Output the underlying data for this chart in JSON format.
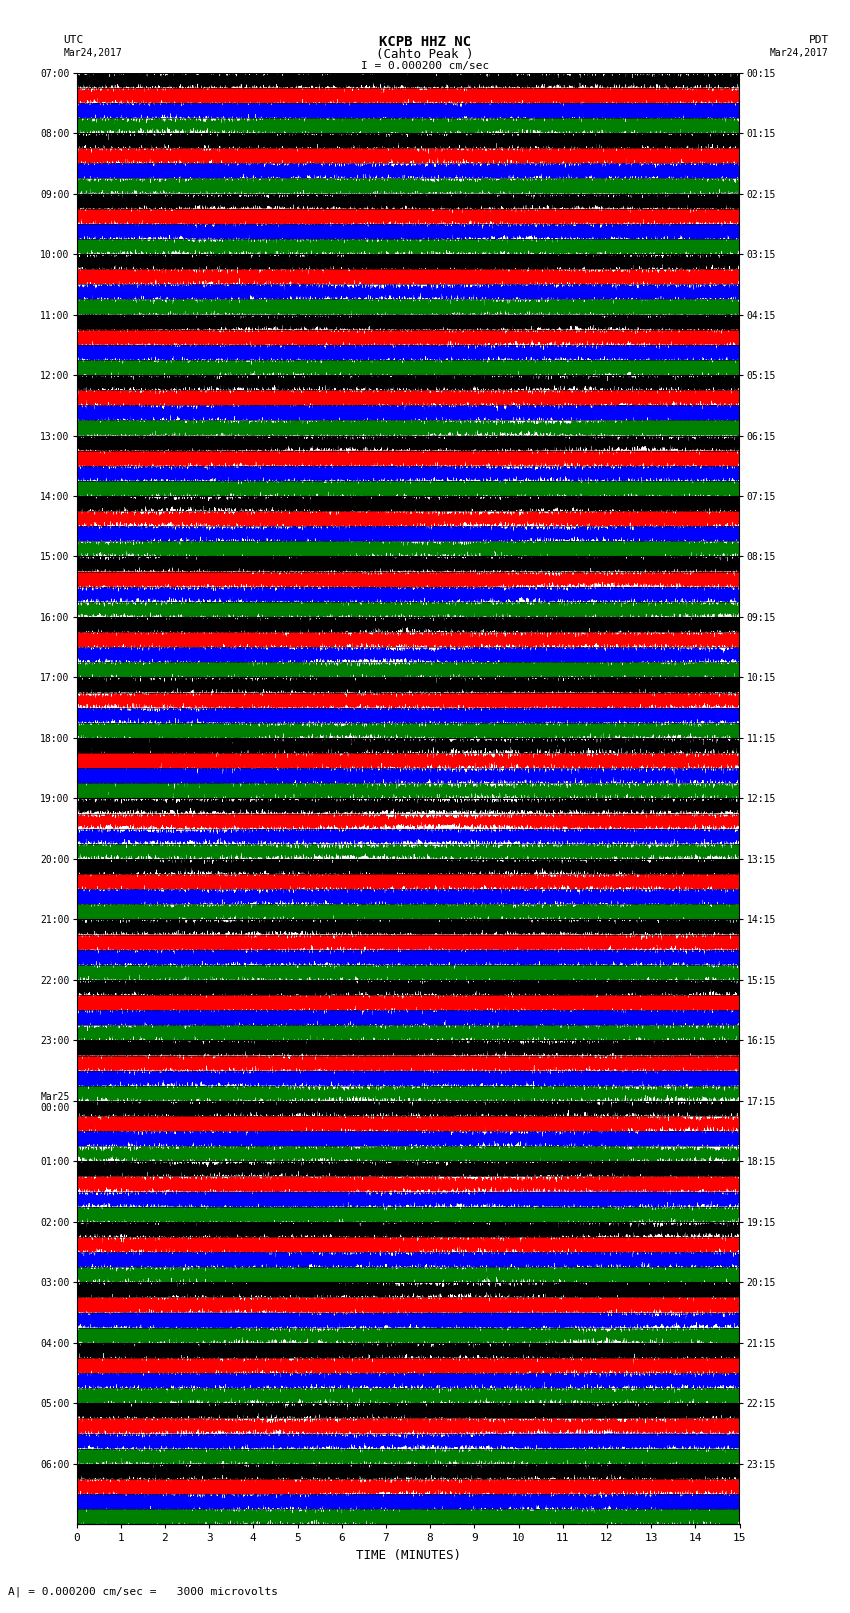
{
  "title_line1": "KCPB HHZ NC",
  "title_line2": "(Cahto Peak )",
  "scale_bar": "I = 0.000200 cm/sec",
  "left_label": "UTC",
  "right_label": "PDT",
  "date_left": "Mar24,2017",
  "date_right": "Mar24,2017",
  "xlabel": "TIME (MINUTES)",
  "bottom_note": "A| = 0.000200 cm/sec =   3000 microvolts",
  "left_times": [
    "07:00",
    "08:00",
    "09:00",
    "10:00",
    "11:00",
    "12:00",
    "13:00",
    "14:00",
    "15:00",
    "16:00",
    "17:00",
    "18:00",
    "19:00",
    "20:00",
    "21:00",
    "22:00",
    "23:00",
    "Mar25\n00:00",
    "01:00",
    "02:00",
    "03:00",
    "04:00",
    "05:00",
    "06:00"
  ],
  "right_times": [
    "00:15",
    "01:15",
    "02:15",
    "03:15",
    "04:15",
    "05:15",
    "06:15",
    "07:15",
    "08:15",
    "09:15",
    "10:15",
    "11:15",
    "12:15",
    "13:15",
    "14:15",
    "15:15",
    "16:15",
    "17:15",
    "18:15",
    "19:15",
    "20:15",
    "21:15",
    "22:15",
    "23:15"
  ],
  "n_traces": 24,
  "minutes_per_trace": 15,
  "sub_colors": [
    "black",
    "red",
    "blue",
    "green"
  ],
  "background": "white",
  "fig_width": 8.5,
  "fig_height": 16.13,
  "dpi": 100,
  "earthquake_row": 11,
  "earthquake_row2": 12
}
